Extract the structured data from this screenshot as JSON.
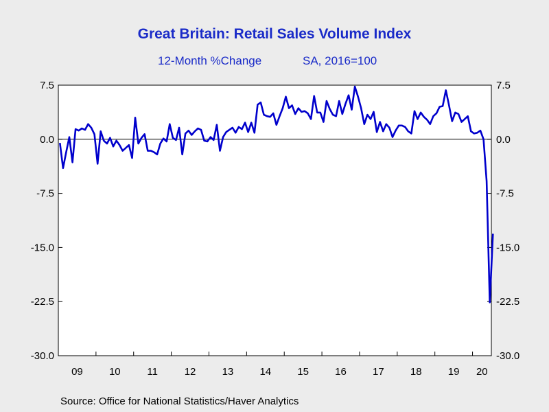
{
  "header": {
    "title": "Great Britain: Retail Sales Volume Index",
    "subtitle_left": "12-Month %Change",
    "subtitle_right": "SA, 2016=100"
  },
  "footer": {
    "source": "Source:  Office for National Statistics/Haver Analytics"
  },
  "chart_data": {
    "type": "line",
    "title": "Great Britain: Retail Sales Volume Index",
    "subtitle": "12-Month %Change    SA, 2016=100",
    "xlabel": "",
    "ylabel": "",
    "ylim": [
      -30,
      7.5
    ],
    "yticks": [
      7.5,
      0.0,
      -7.5,
      -15.0,
      -22.5,
      -30.0
    ],
    "ytick_labels": [
      "7.5",
      "0.0",
      "-7.5",
      "-15.0",
      "-22.5",
      "-30.0"
    ],
    "xtick_labels": [
      "09",
      "10",
      "11",
      "12",
      "13",
      "14",
      "15",
      "16",
      "17",
      "18",
      "19",
      "20"
    ],
    "x_start": "2009-01",
    "x_end": "2020-06",
    "grid": false,
    "zero_line": true,
    "line_color": "#0000cc",
    "series": [
      {
        "values": [
          -0.5,
          -4.0,
          -1.8,
          0.3,
          -3.2,
          1.4,
          1.2,
          1.5,
          1.3,
          2.1,
          1.6,
          0.7,
          -3.4,
          1.1,
          -0.2,
          -0.6,
          0.2,
          -1.0,
          -0.2,
          -0.8,
          -1.6,
          -1.2,
          -0.8,
          -2.6,
          3.0,
          -0.6,
          0.2,
          0.7,
          -1.6,
          -1.6,
          -1.8,
          -2.1,
          -0.6,
          0.1,
          -0.3,
          2.1,
          0.2,
          -0.1,
          1.6,
          -2.1,
          0.8,
          1.2,
          0.6,
          1.1,
          1.5,
          1.3,
          -0.2,
          -0.3,
          0.3,
          -0.1,
          2.0,
          -1.6,
          0.3,
          1.0,
          1.3,
          1.6,
          0.9,
          1.7,
          1.4,
          2.3,
          1.0,
          2.3,
          0.9,
          4.8,
          5.1,
          3.4,
          3.2,
          3.1,
          3.6,
          2.0,
          3.2,
          4.3,
          5.9,
          4.3,
          4.7,
          3.5,
          4.3,
          3.8,
          3.9,
          3.6,
          2.8,
          6.0,
          3.7,
          3.7,
          2.4,
          5.3,
          4.2,
          3.4,
          3.2,
          5.3,
          3.5,
          4.9,
          6.1,
          4.1,
          7.3,
          5.9,
          4.3,
          2.1,
          3.4,
          2.8,
          3.8,
          1.0,
          2.4,
          1.1,
          2.1,
          1.6,
          0.3,
          1.2,
          1.9,
          1.9,
          1.7,
          1.1,
          0.8,
          3.9,
          2.8,
          3.7,
          3.1,
          2.7,
          2.1,
          3.2,
          3.6,
          4.5,
          4.6,
          6.8,
          4.7,
          2.5,
          3.7,
          3.5,
          2.4,
          2.8,
          3.2,
          1.1,
          0.8,
          0.9,
          1.2,
          0.0,
          -5.8,
          -22.6,
          -13.1
        ]
      }
    ]
  }
}
